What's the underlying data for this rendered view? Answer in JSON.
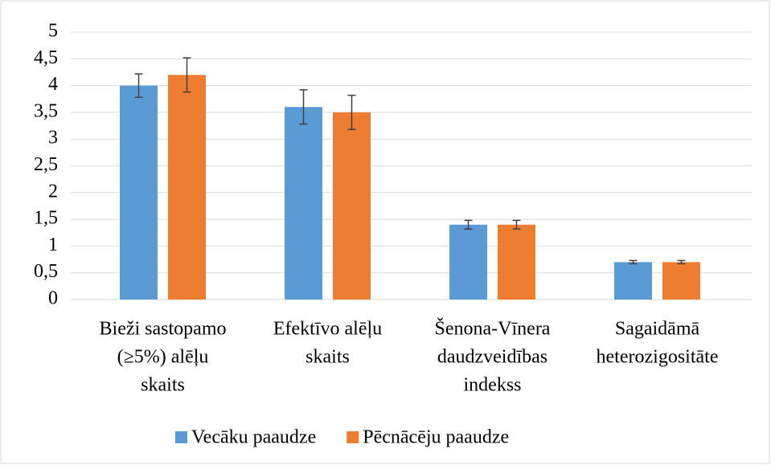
{
  "chart_data": {
    "type": "bar",
    "categories": [
      [
        "Bieži sastopamo",
        "(≥5%) alēļu",
        "skaits"
      ],
      [
        "Efektīvo alēļu",
        "skaits"
      ],
      [
        "Šenona-Vīnera",
        "daudzveidības",
        "indekss"
      ],
      [
        "Sagaidāmā",
        "heterozigositāte"
      ]
    ],
    "series": [
      {
        "name": "Vecāku paaudze",
        "color": "#5b9bd5",
        "values": [
          4.0,
          3.6,
          1.4,
          0.7
        ],
        "errors": [
          0.22,
          0.32,
          0.08,
          0.03
        ]
      },
      {
        "name": "Pēcnācēju paaudze",
        "color": "#ed7d31",
        "values": [
          4.2,
          3.5,
          1.4,
          0.7
        ],
        "errors": [
          0.32,
          0.32,
          0.08,
          0.03
        ]
      }
    ],
    "ylim": [
      0,
      5
    ],
    "yticks": [
      0,
      {
        "value": 0.5,
        "label": "0,5"
      },
      1,
      {
        "value": 1.5,
        "label": "1,5"
      },
      2,
      {
        "value": 2.5,
        "label": "2,5"
      },
      3,
      {
        "value": 3.5,
        "label": "3,5"
      },
      4,
      {
        "value": 4.5,
        "label": "4,5"
      },
      5
    ],
    "grid": true,
    "legend": "bottom"
  }
}
